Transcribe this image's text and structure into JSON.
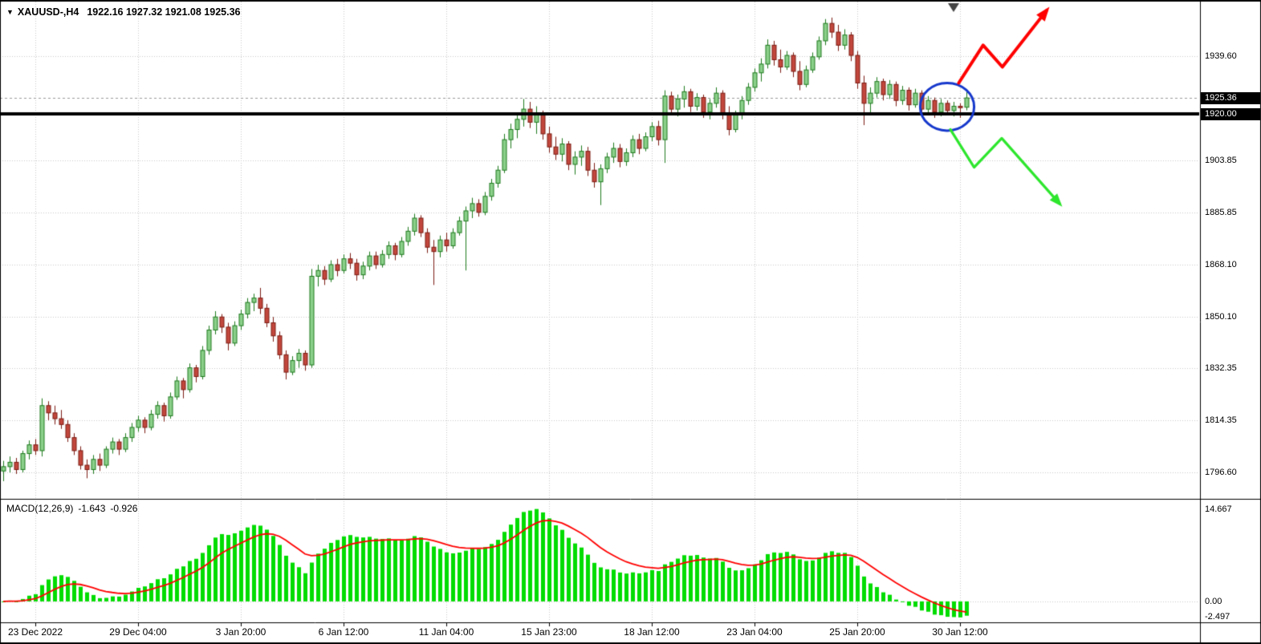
{
  "title": {
    "dropdown_icon": "▼",
    "symbol_timeframe": "XAUUSD-,H4",
    "ohlc": "1922.16 1927.32 1921.08 1925.36"
  },
  "chart_data": {
    "type": "candlestick",
    "symbol": "XAUUSD-",
    "timeframe": "H4",
    "current_bar": {
      "open": 1922.16,
      "high": 1927.32,
      "low": 1921.08,
      "close": 1925.36
    },
    "price_axis": {
      "ticks": [
        "1939.60",
        "1903.85",
        "1885.85",
        "1868.10",
        "1850.10",
        "1832.35",
        "1814.35",
        "1796.60"
      ],
      "tick_values": [
        1939.6,
        1903.85,
        1885.85,
        1868.1,
        1850.1,
        1832.35,
        1814.35,
        1796.6
      ],
      "current_price_label": "1925.36",
      "current_price": 1925.36,
      "hline_label": "1920.00",
      "hline_price": 1920.0,
      "range": {
        "min": 1787.7,
        "max": 1958.5
      }
    },
    "x_axis": {
      "labels": [
        "23 Dec 2022",
        "29 Dec 04:00",
        "3 Jan 20:00",
        "6 Jan 12:00",
        "11 Jan 04:00",
        "15 Jan 23:00",
        "18 Jan 12:00",
        "23 Jan 04:00",
        "25 Jan 20:00",
        "30 Jan 12:00"
      ],
      "label_slots": [
        5,
        21,
        37,
        53,
        69,
        85,
        101,
        117,
        133,
        149
      ]
    },
    "candles": [
      [
        1797,
        1800.5,
        1793.5,
        1798.5
      ],
      [
        1798.5,
        1802,
        1796.5,
        1800
      ],
      [
        1800,
        1801.5,
        1796,
        1797.5
      ],
      [
        1797.5,
        1804,
        1796.5,
        1803
      ],
      [
        1803,
        1807.5,
        1801,
        1806
      ],
      [
        1806,
        1808,
        1802.5,
        1804
      ],
      [
        1804,
        1822,
        1802,
        1819.5
      ],
      [
        1819.5,
        1821,
        1814.5,
        1817
      ],
      [
        1817,
        1819.5,
        1813,
        1815
      ],
      [
        1815,
        1818,
        1811.5,
        1813
      ],
      [
        1813,
        1814.5,
        1807,
        1808.5
      ],
      [
        1808.5,
        1810,
        1802.5,
        1804
      ],
      [
        1804,
        1805.5,
        1797.5,
        1799
      ],
      [
        1799,
        1801,
        1794.5,
        1797.5
      ],
      [
        1797.5,
        1802.5,
        1796,
        1801
      ],
      [
        1801,
        1803,
        1797,
        1799
      ],
      [
        1799,
        1805.5,
        1798,
        1804.5
      ],
      [
        1804.5,
        1808.5,
        1803,
        1807
      ],
      [
        1807,
        1808,
        1802.5,
        1804.5
      ],
      [
        1804.5,
        1810,
        1803.5,
        1808.5
      ],
      [
        1808.5,
        1813.5,
        1807,
        1812
      ],
      [
        1812,
        1816,
        1810.5,
        1814.5
      ],
      [
        1814.5,
        1815.5,
        1810,
        1812
      ],
      [
        1812,
        1818,
        1811,
        1816.5
      ],
      [
        1816.5,
        1821,
        1815,
        1819.5
      ],
      [
        1819.5,
        1820.5,
        1814,
        1816
      ],
      [
        1816,
        1824,
        1815,
        1822.5
      ],
      [
        1822.5,
        1829.5,
        1821.5,
        1828
      ],
      [
        1828,
        1829,
        1822,
        1825
      ],
      [
        1825,
        1834,
        1824,
        1832.5
      ],
      [
        1832.5,
        1833.5,
        1827.5,
        1829.5
      ],
      [
        1829.5,
        1840,
        1828.5,
        1838.5
      ],
      [
        1838.5,
        1847,
        1837,
        1845.5
      ],
      [
        1845.5,
        1852,
        1844,
        1850
      ],
      [
        1850,
        1851,
        1844.5,
        1846.5
      ],
      [
        1846.5,
        1848,
        1838.5,
        1841
      ],
      [
        1841,
        1848.5,
        1840,
        1847
      ],
      [
        1847,
        1852.5,
        1845.5,
        1851
      ],
      [
        1851,
        1856.5,
        1849.5,
        1855
      ],
      [
        1855,
        1858,
        1852,
        1856.5
      ],
      [
        1856.5,
        1860,
        1851,
        1853
      ],
      [
        1853,
        1854.5,
        1846.5,
        1848
      ],
      [
        1848,
        1850,
        1841.5,
        1843.5
      ],
      [
        1843.5,
        1845,
        1835.5,
        1837
      ],
      [
        1837,
        1838.5,
        1828.5,
        1831
      ],
      [
        1831,
        1836.5,
        1830,
        1835
      ],
      [
        1835,
        1839,
        1832.5,
        1837.5
      ],
      [
        1837.5,
        1838.5,
        1831.5,
        1833.5
      ],
      [
        1833.5,
        1866.5,
        1832.5,
        1864
      ],
      [
        1864,
        1868,
        1860.5,
        1866
      ],
      [
        1866,
        1867.5,
        1861,
        1863
      ],
      [
        1863,
        1869.5,
        1862,
        1868
      ],
      [
        1868,
        1870,
        1864,
        1866
      ],
      [
        1866,
        1871.5,
        1865,
        1870
      ],
      [
        1870,
        1872,
        1866.5,
        1868.5
      ],
      [
        1868.5,
        1870,
        1862.5,
        1864.5
      ],
      [
        1864.5,
        1869,
        1863,
        1867.5
      ],
      [
        1867.5,
        1872.5,
        1866,
        1871
      ],
      [
        1871,
        1872.5,
        1866.5,
        1868
      ],
      [
        1868,
        1873,
        1867,
        1871.5
      ],
      [
        1871.5,
        1876,
        1870,
        1874.5
      ],
      [
        1874.5,
        1875.5,
        1869.5,
        1871.5
      ],
      [
        1871.5,
        1877.5,
        1870.5,
        1876
      ],
      [
        1876,
        1881,
        1874.5,
        1879.5
      ],
      [
        1879.5,
        1885.5,
        1878,
        1884
      ],
      [
        1884,
        1885,
        1877.5,
        1879
      ],
      [
        1879,
        1880.5,
        1872,
        1874
      ],
      [
        1874,
        1876.5,
        1861,
        1872.5
      ],
      [
        1872.5,
        1878,
        1870.5,
        1876.5
      ],
      [
        1876.5,
        1879,
        1872.5,
        1874.5
      ],
      [
        1874.5,
        1880.5,
        1873.5,
        1879
      ],
      [
        1879,
        1884.5,
        1878,
        1883
      ],
      [
        1883,
        1888,
        1866,
        1886.5
      ],
      [
        1886.5,
        1891,
        1884,
        1889
      ],
      [
        1889,
        1890.5,
        1884.5,
        1886
      ],
      [
        1886,
        1893,
        1885,
        1891.5
      ],
      [
        1891.5,
        1897.5,
        1890,
        1896
      ],
      [
        1896,
        1902,
        1894.5,
        1900.5
      ],
      [
        1900.5,
        1913,
        1899.5,
        1911
      ],
      [
        1911,
        1916.5,
        1908,
        1914.5
      ],
      [
        1914.5,
        1920,
        1911.5,
        1918
      ],
      [
        1918,
        1925,
        1915.5,
        1921.5
      ],
      [
        1921.5,
        1924,
        1915,
        1917
      ],
      [
        1917,
        1922.5,
        1913,
        1920
      ],
      [
        1920,
        1921,
        1911,
        1913
      ],
      [
        1913,
        1915.5,
        1906.5,
        1908.5
      ],
      [
        1908.5,
        1912,
        1904,
        1906
      ],
      [
        1906,
        1911.5,
        1903.5,
        1909.5
      ],
      [
        1909.5,
        1910.5,
        1900.5,
        1902.5
      ],
      [
        1902.5,
        1907,
        1899,
        1905
      ],
      [
        1905,
        1909,
        1902,
        1907
      ],
      [
        1907,
        1908.5,
        1898.5,
        1900.5
      ],
      [
        1900.5,
        1903,
        1894.5,
        1896.5
      ],
      [
        1896.5,
        1902.5,
        1888.5,
        1901
      ],
      [
        1901,
        1906.5,
        1899.5,
        1905
      ],
      [
        1905,
        1910,
        1903,
        1908
      ],
      [
        1908,
        1909.5,
        1901.5,
        1903.5
      ],
      [
        1903.5,
        1908,
        1902,
        1906.5
      ],
      [
        1906.5,
        1912.5,
        1905,
        1911
      ],
      [
        1911,
        1913,
        1906,
        1908
      ],
      [
        1908,
        1913.5,
        1907,
        1912
      ],
      [
        1912,
        1917,
        1910.5,
        1915.5
      ],
      [
        1915.5,
        1917.5,
        1909,
        1911
      ],
      [
        1911,
        1928,
        1903,
        1926
      ],
      [
        1926,
        1927.5,
        1919.5,
        1921.5
      ],
      [
        1921.5,
        1926.5,
        1919,
        1925
      ],
      [
        1925,
        1929.5,
        1922,
        1927.5
      ],
      [
        1927.5,
        1928.5,
        1920.5,
        1922.5
      ],
      [
        1922.5,
        1927,
        1921,
        1925.5
      ],
      [
        1925.5,
        1926.5,
        1918.5,
        1920.5
      ],
      [
        1920.5,
        1925,
        1918,
        1923.5
      ],
      [
        1923.5,
        1929,
        1922,
        1927
      ],
      [
        1927,
        1928,
        1918,
        1920
      ],
      [
        1920,
        1922.5,
        1912.5,
        1914.5
      ],
      [
        1914.5,
        1921,
        1913.5,
        1919.5
      ],
      [
        1919.5,
        1926,
        1918,
        1924.5
      ],
      [
        1924.5,
        1930.5,
        1923,
        1929
      ],
      [
        1929,
        1935.5,
        1927.5,
        1934
      ],
      [
        1934,
        1939,
        1931,
        1937
      ],
      [
        1937,
        1945.5,
        1935.5,
        1943.5
      ],
      [
        1943.5,
        1945,
        1936.5,
        1938.5
      ],
      [
        1938.5,
        1942,
        1934,
        1936
      ],
      [
        1936,
        1941.5,
        1935,
        1940
      ],
      [
        1940,
        1941,
        1932.5,
        1934.5
      ],
      [
        1934.5,
        1938,
        1928,
        1930
      ],
      [
        1930,
        1936.5,
        1929,
        1935
      ],
      [
        1935,
        1941,
        1934,
        1939.5
      ],
      [
        1939.5,
        1946.5,
        1938.5,
        1945
      ],
      [
        1945,
        1952.5,
        1943.5,
        1951
      ],
      [
        1951,
        1953,
        1946,
        1948
      ],
      [
        1948,
        1950.5,
        1941.5,
        1943.5
      ],
      [
        1943.5,
        1949,
        1942,
        1947
      ],
      [
        1947,
        1948,
        1938,
        1940
      ],
      [
        1940,
        1941.5,
        1928.5,
        1930.5
      ],
      [
        1930.5,
        1933,
        1916,
        1923.5
      ],
      [
        1923.5,
        1929,
        1920,
        1927
      ],
      [
        1927,
        1932.5,
        1925.5,
        1931
      ],
      [
        1931,
        1932,
        1924.5,
        1926.5
      ],
      [
        1926.5,
        1931.5,
        1925,
        1930
      ],
      [
        1930,
        1931,
        1922.5,
        1924.5
      ],
      [
        1924.5,
        1929.5,
        1923,
        1928
      ],
      [
        1928,
        1929,
        1921,
        1923
      ],
      [
        1923,
        1928.5,
        1922,
        1927
      ],
      [
        1927,
        1928,
        1919.5,
        1921.5
      ],
      [
        1921.5,
        1926,
        1920,
        1924.5
      ],
      [
        1924.5,
        1925.5,
        1918.5,
        1920.5
      ],
      [
        1920.5,
        1925,
        1919,
        1923.5
      ],
      [
        1923.5,
        1924.5,
        1919.5,
        1921
      ],
      [
        1921,
        1924,
        1919,
        1922.5
      ],
      [
        1922.5,
        1923.5,
        1918.5,
        1922
      ],
      [
        1922.16,
        1927.32,
        1921.08,
        1925.36
      ]
    ],
    "macd": {
      "label": "MACD(12,26,9)",
      "value_macd": "-1.643",
      "value_signal": "-0.926",
      "params": {
        "fast": 12,
        "slow": 26,
        "signal": 9
      },
      "axis_ticks": [
        "14.667",
        "0.00",
        "-2.497"
      ],
      "axis_tick_values": [
        14.667,
        0,
        -2.497
      ],
      "range": {
        "min": -3.2,
        "max": 15.9
      }
    },
    "annotations": {
      "highlight_circle": {
        "slot": 147,
        "price": 1922.3,
        "rx_slots": 4.2,
        "ry_price": 8.2
      },
      "bullish_arrow": {
        "points_slot_price": [
          [
            148.8,
            1930.5
          ],
          [
            152.6,
            1943.5
          ],
          [
            155.6,
            1936.0
          ],
          [
            162.5,
            1955.5
          ]
        ]
      },
      "bearish_arrow": {
        "points_slot_price": [
          [
            147.5,
            1914.5
          ],
          [
            151.2,
            1901.5
          ],
          [
            155.5,
            1911.5
          ],
          [
            164.5,
            1889.0
          ]
        ]
      },
      "last_bar_marker_slot": 148
    },
    "colors": {
      "background": "#ffffff",
      "grid": "#c9c9c9",
      "bull_fill": "#8bcf8b",
      "bull_border": "#1e7a1e",
      "bear_fill": "#c2473d",
      "bear_border": "#7c1c13",
      "hline": "#000000",
      "current_price_line": "#999999",
      "macd_histogram": "#00dc00",
      "macd_signal": "#ff0000",
      "circle": "#1638cc",
      "bullish_arrow": "#ff0000",
      "bearish_arrow": "#2de62d",
      "axis_label_box_bg": "#000000",
      "axis_label_box_text": "#ffffff",
      "last_bar_marker": "#444444",
      "text": "#000000"
    }
  }
}
